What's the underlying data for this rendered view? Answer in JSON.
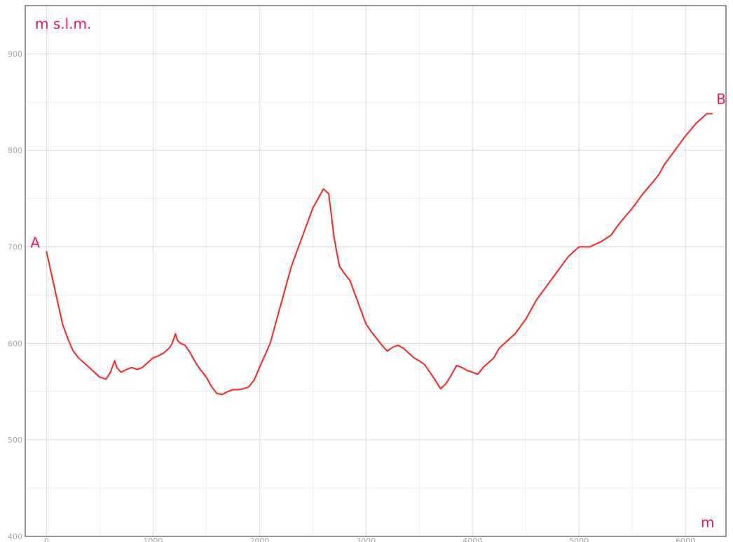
{
  "chart_data": {
    "type": "line",
    "title": "",
    "xlabel": "m",
    "ylabel": "m s.l.m.",
    "xlim": [
      -200,
      6380
    ],
    "ylim": [
      400,
      950
    ],
    "x_ticks": [
      "0",
      "1000",
      "2000",
      "3000",
      "4000",
      "5000",
      "6000"
    ],
    "y_ticks": [
      "400",
      "500",
      "600",
      "700",
      "800",
      "900"
    ],
    "grid": true,
    "legend": "none",
    "start_label": "A",
    "end_label": "B",
    "line_color": "#ff2222",
    "text_color": "#e8174f",
    "series": [
      {
        "x": [
          0,
          50,
          100,
          150,
          200,
          250,
          300,
          350,
          400,
          450,
          500,
          560,
          600,
          640,
          660,
          700,
          750,
          800,
          850,
          900,
          950,
          1000,
          1050,
          1100,
          1150,
          1180,
          1210,
          1230,
          1260,
          1300,
          1350,
          1400,
          1450,
          1500,
          1550,
          1600,
          1650,
          1700,
          1750,
          1800,
          1850,
          1900,
          1950,
          2000,
          2100,
          2200,
          2300,
          2400,
          2500,
          2600,
          2650,
          2700,
          2750,
          2800,
          2850,
          2900,
          2950,
          3000,
          3050,
          3100,
          3150,
          3200,
          3250,
          3300,
          3350,
          3400,
          3450,
          3500,
          3550,
          3600,
          3650,
          3700,
          3750,
          3800,
          3850,
          3900,
          3950,
          4000,
          4050,
          4100,
          4150,
          4200,
          4250,
          4300,
          4400,
          4500,
          4600,
          4700,
          4800,
          4900,
          5000,
          5100,
          5200,
          5300,
          5350,
          5400,
          5500,
          5600,
          5700,
          5750,
          5800,
          5900,
          6000,
          6100,
          6200,
          6250
        ],
        "values": [
          695,
          670,
          645,
          620,
          605,
          592,
          585,
          580,
          575,
          570,
          565,
          563,
          570,
          582,
          575,
          570,
          573,
          575,
          573,
          575,
          580,
          585,
          587,
          590,
          595,
          600,
          610,
          603,
          600,
          598,
          590,
          580,
          572,
          565,
          555,
          548,
          547,
          550,
          552,
          552,
          553,
          555,
          562,
          575,
          600,
          640,
          680,
          710,
          740,
          760,
          755,
          710,
          680,
          672,
          665,
          650,
          635,
          620,
          612,
          605,
          598,
          592,
          596,
          598,
          595,
          590,
          585,
          582,
          578,
          570,
          562,
          553,
          558,
          567,
          577,
          575,
          572,
          570,
          568,
          575,
          580,
          585,
          595,
          600,
          610,
          625,
          645,
          660,
          675,
          690,
          700,
          700,
          705,
          712,
          720,
          727,
          740,
          755,
          768,
          775,
          785,
          800,
          815,
          828,
          838,
          838
        ]
      }
    ]
  }
}
